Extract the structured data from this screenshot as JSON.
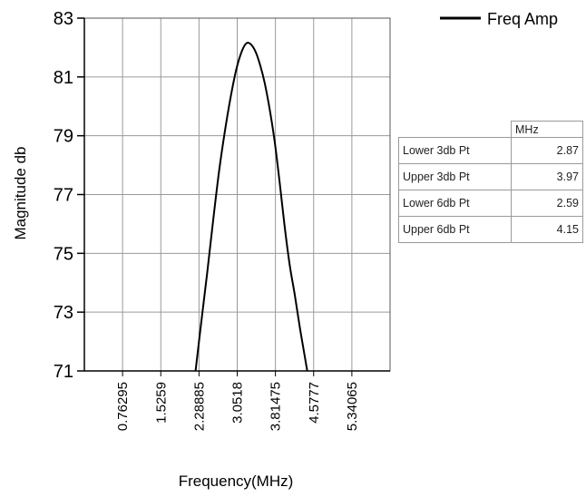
{
  "chart_data": {
    "type": "line",
    "xlabel": "Frequency(MHz)",
    "ylabel": "Magnitude db",
    "ylim": [
      71,
      83
    ],
    "yticks": [
      "71",
      "73",
      "75",
      "77",
      "79",
      "81",
      "83"
    ],
    "xlim": [
      0,
      6.1035
    ],
    "xticks": [
      "0.76295",
      "1.5259",
      "2.28885",
      "3.0518",
      "3.81475",
      "4.5777",
      "5.34065"
    ],
    "grid": true,
    "legend_position": "top-right",
    "series": [
      {
        "name": "Freq Amp",
        "color": "#000000",
        "x": [
          2.22,
          2.33,
          2.45,
          2.57,
          2.69,
          2.81,
          2.93,
          3.04,
          3.15,
          3.24,
          3.33,
          3.42,
          3.51,
          3.6,
          3.7,
          3.8,
          3.9,
          4.0,
          4.1,
          4.2,
          4.3,
          4.4,
          4.45
        ],
        "y": [
          71.0,
          72.6,
          74.3,
          76.1,
          77.8,
          79.2,
          80.4,
          81.3,
          81.9,
          82.15,
          82.1,
          81.85,
          81.4,
          80.8,
          79.9,
          78.8,
          77.4,
          75.9,
          74.6,
          73.6,
          72.5,
          71.5,
          71.0
        ]
      }
    ]
  },
  "table": {
    "header": "MHz",
    "rows": [
      {
        "label": "Lower 3db Pt",
        "value": "2.87"
      },
      {
        "label": "Upper 3db Pt",
        "value": "3.97"
      },
      {
        "label": "Lower 6db Pt",
        "value": "2.59"
      },
      {
        "label": "Upper 6db Pt",
        "value": "4.15"
      }
    ]
  }
}
